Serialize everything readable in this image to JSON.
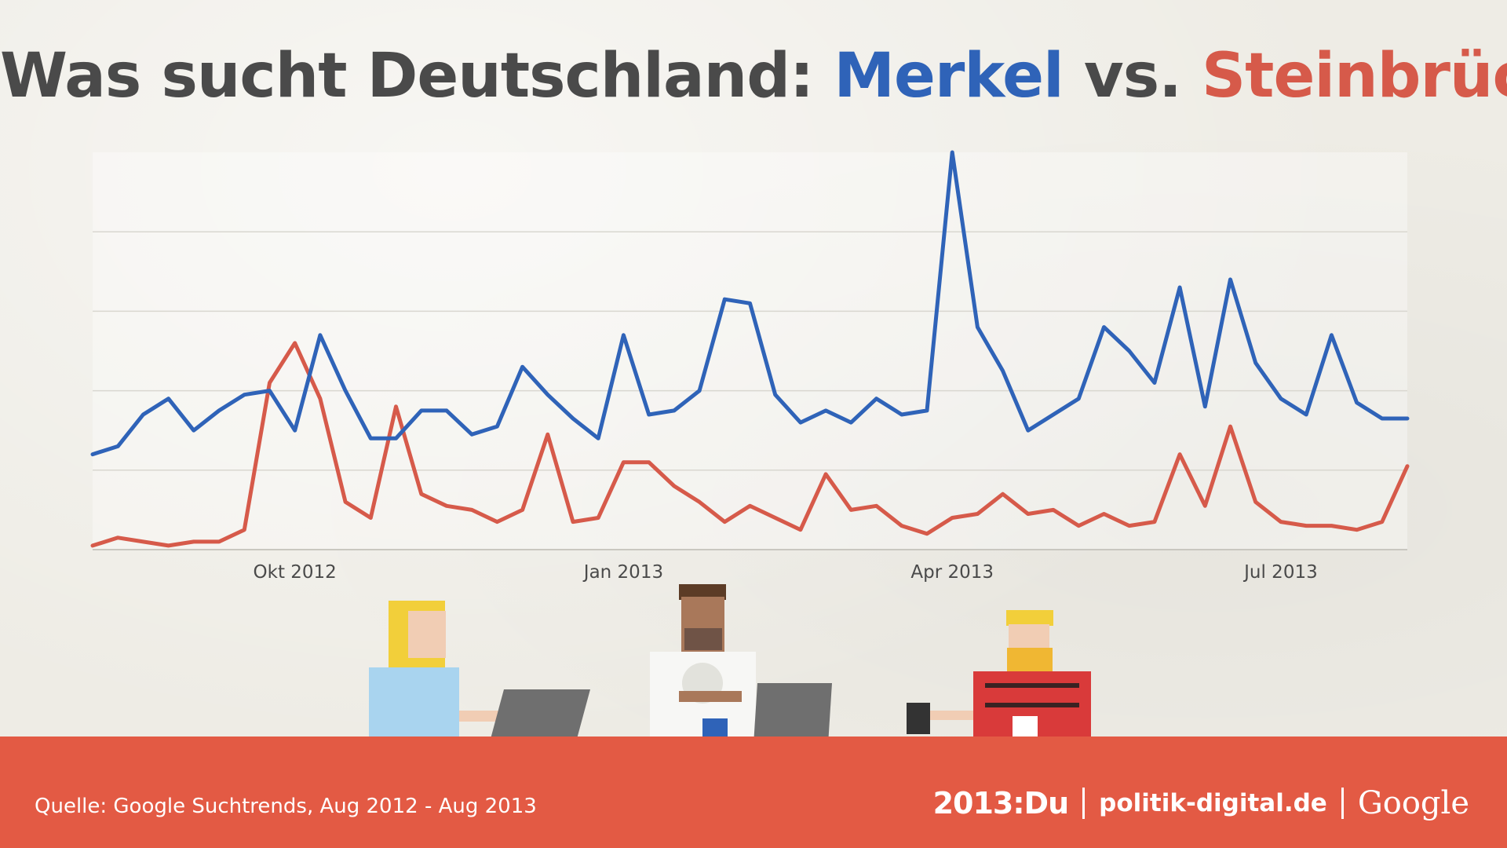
{
  "header": {
    "title_prefix": "Was sucht Deutschland: ",
    "title_merkel": "Merkel",
    "title_vs": " vs. ",
    "title_stein": "Steinbrück"
  },
  "footer": {
    "source": "Quelle: Google Suchtrends, Aug 2012 - Aug 2013",
    "logo_2013": "2013:Du",
    "logo_pd": "politik-digital.de",
    "logo_google": "Google"
  },
  "colors": {
    "merkel": "#2f63b8",
    "steinbrueck": "#d65a4a",
    "footer": "#e35a44",
    "grid": "#d9d7d0"
  },
  "chart_data": {
    "type": "line",
    "x_ticks": [
      "Okt 2012",
      "Jan 2013",
      "Apr 2013",
      "Jul 2013"
    ],
    "x_tick_index": [
      8,
      21,
      34,
      47
    ],
    "grid": true,
    "ylim": [
      0,
      100
    ],
    "series": [
      {
        "key": "merkel",
        "values": [
          24,
          26,
          34,
          38,
          30,
          35,
          39,
          40,
          30,
          54,
          40,
          28,
          28,
          35,
          35,
          29,
          31,
          46,
          39,
          33,
          28,
          54,
          34,
          35,
          40,
          63,
          62,
          39,
          32,
          35,
          32,
          38,
          34,
          35,
          100,
          56,
          45,
          30,
          34,
          38,
          56,
          50,
          42,
          66,
          36,
          68,
          47,
          38,
          34,
          54,
          37,
          33,
          33
        ]
      },
      {
        "key": "steinbrueck",
        "values": [
          1,
          3,
          2,
          1,
          2,
          2,
          5,
          42,
          52,
          38,
          12,
          8,
          36,
          14,
          11,
          10,
          7,
          10,
          29,
          7,
          8,
          22,
          22,
          16,
          12,
          7,
          11,
          8,
          5,
          19,
          10,
          11,
          6,
          4,
          8,
          9,
          14,
          9,
          10,
          6,
          9,
          6,
          7,
          24,
          11,
          31,
          12,
          7,
          6,
          6,
          5,
          7,
          21
        ]
      }
    ]
  }
}
